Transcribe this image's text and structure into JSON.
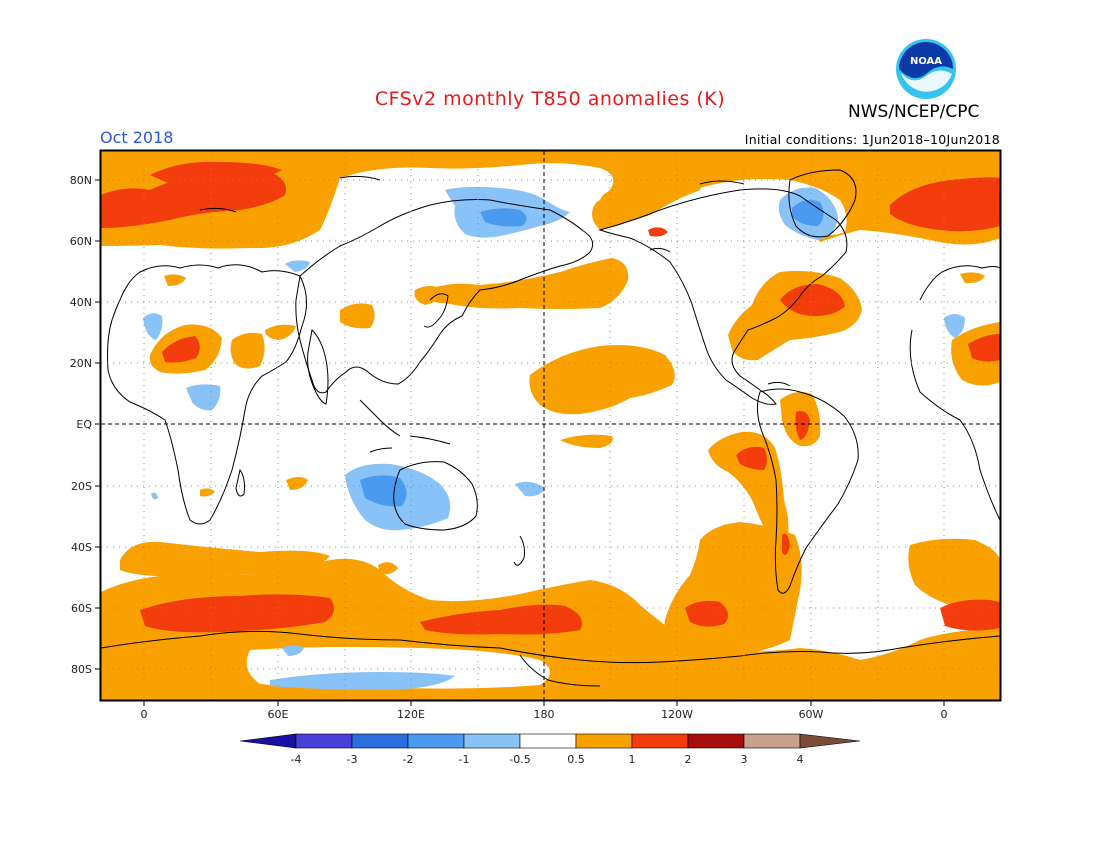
{
  "header": {
    "title": "CFSv2 monthly T850 anomalies (K)",
    "period": "Oct 2018",
    "initial_conditions": "Initial conditions: 1Jun2018–10Jun2018",
    "org": "NWS/NCEP/CPC",
    "logo_text": "NOAA"
  },
  "axes": {
    "lat_ticks": [
      "80N",
      "60N",
      "40N",
      "20N",
      "EQ",
      "20S",
      "40S",
      "60S",
      "80S"
    ],
    "lon_ticks": [
      "0",
      "60E",
      "120E",
      "180",
      "120W",
      "60W",
      "0"
    ]
  },
  "legend": {
    "labels": [
      "-4",
      "-3",
      "-2",
      "-1",
      "-0.5",
      "0.5",
      "1",
      "2",
      "3",
      "4"
    ],
    "colors": [
      "#1a0fa0",
      "#4a3fd6",
      "#2a6ee0",
      "#4a9af0",
      "#88c2f6",
      "#ffffff",
      "#f9a100",
      "#f23c0c",
      "#a80d0d",
      "#c9a08c",
      "#7b4b3a"
    ]
  }
}
